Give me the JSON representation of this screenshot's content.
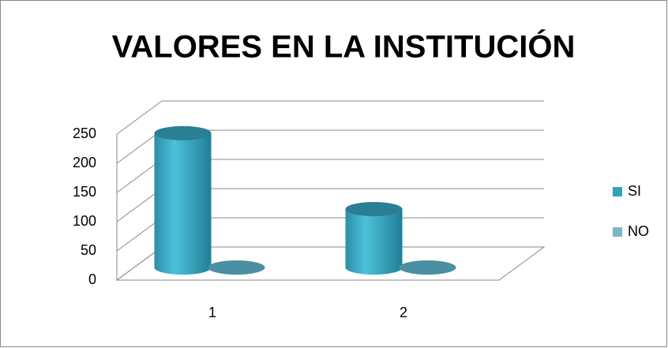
{
  "chart_data": {
    "type": "bar3d",
    "title": "VALORES EN LA INSTITUCIÓN",
    "categories": [
      "1",
      "2"
    ],
    "series": [
      {
        "name": "SI",
        "color": "#31a2bb",
        "values": [
          230,
          100
        ]
      },
      {
        "name": "NO",
        "color": "#7eb6c9",
        "values": [
          0,
          0
        ]
      }
    ],
    "ylim": [
      0,
      250
    ],
    "yticks": [
      0,
      50,
      100,
      150,
      200,
      250
    ],
    "grid": true,
    "legend": "right"
  }
}
